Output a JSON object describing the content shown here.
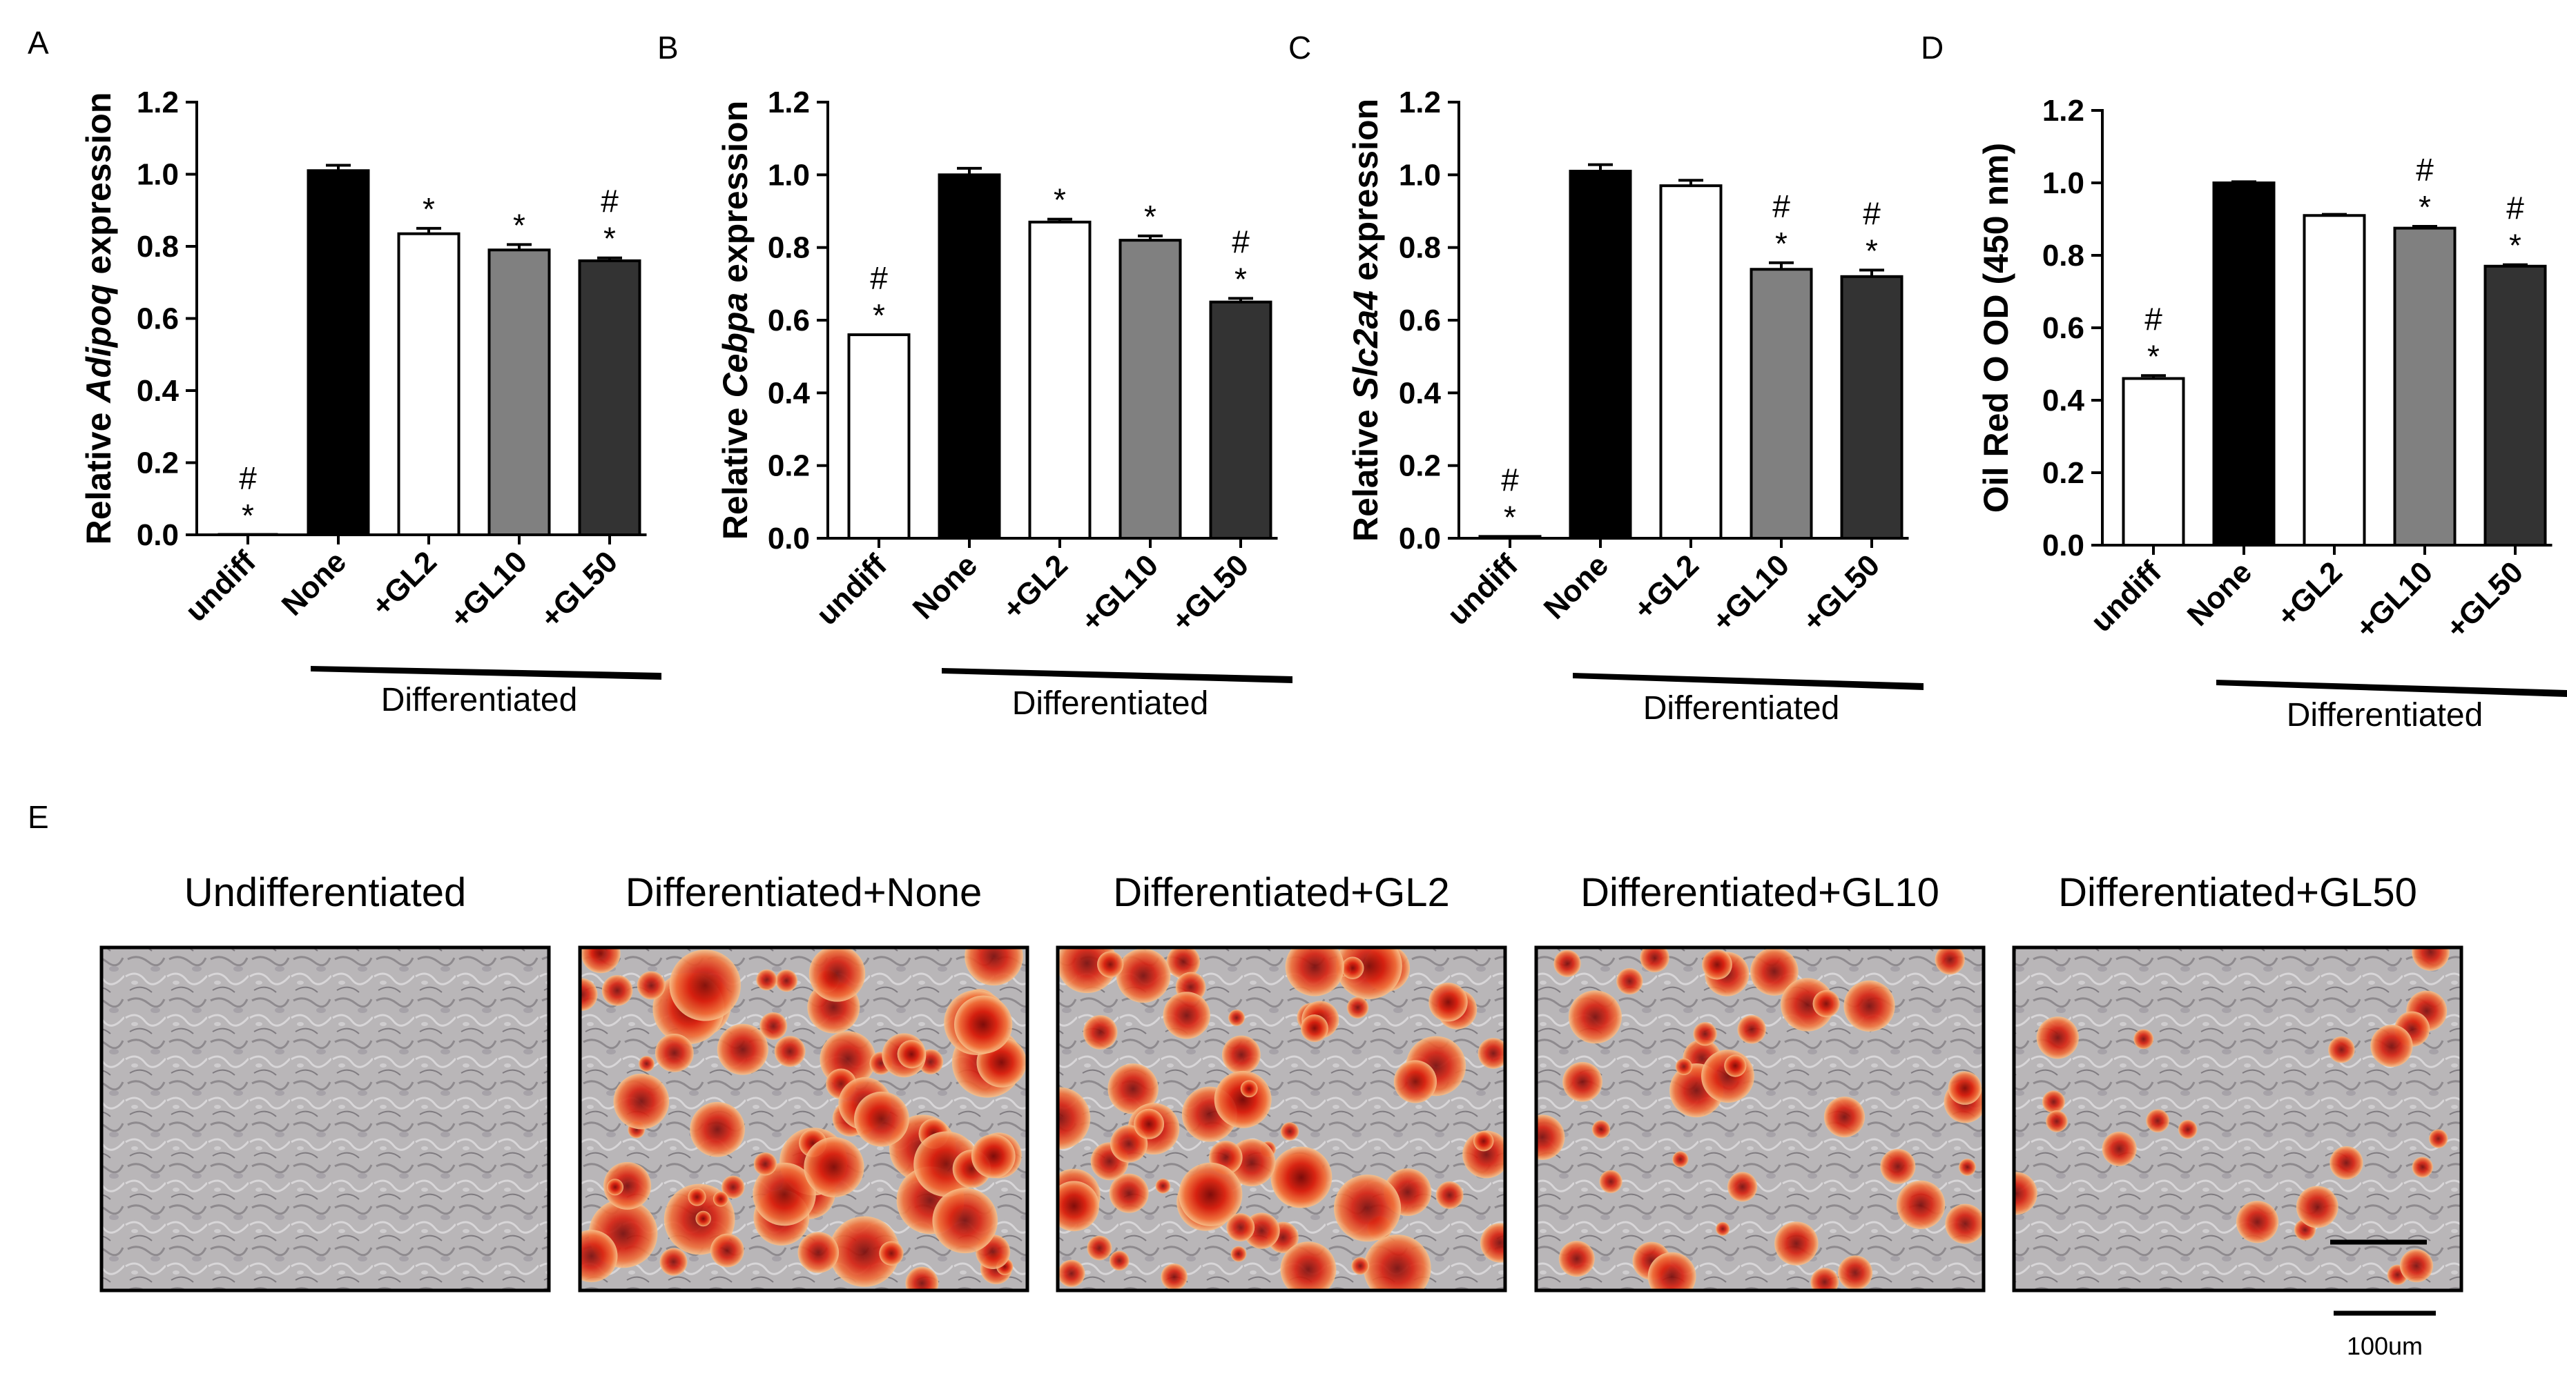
{
  "chart_data": [
    {
      "type": "bar",
      "panel": "A",
      "ylabel_prefix": "Relative ",
      "ylabel_gene": "Adipoq",
      "ylabel_suffix": " expression",
      "categories": [
        "undiff",
        "None",
        "+GL2",
        "+GL10",
        "+GL50"
      ],
      "values": [
        0.0,
        1.01,
        0.835,
        0.79,
        0.76
      ],
      "errors": [
        0.0,
        0.015,
        0.015,
        0.015,
        0.008
      ],
      "colors": [
        "#ffffff",
        "#000000",
        "#ffffff",
        "#808080",
        "#333333"
      ],
      "significance": [
        "#\n*",
        "",
        "*",
        "*",
        "#\n*"
      ],
      "ylim": [
        0,
        1.2
      ],
      "yticks": [
        "0.0",
        "0.2",
        "0.4",
        "0.6",
        "0.8",
        "1.0",
        "1.2"
      ],
      "group_label": "Differentiated"
    },
    {
      "type": "bar",
      "panel": "B",
      "ylabel_prefix": "Relative ",
      "ylabel_gene": "Cebpa",
      "ylabel_suffix": " expression",
      "categories": [
        "undiff",
        "None",
        "+GL2",
        "+GL10",
        "+GL50"
      ],
      "values": [
        0.56,
        1.0,
        0.87,
        0.82,
        0.65
      ],
      "errors": [
        0.0,
        0.018,
        0.008,
        0.012,
        0.01
      ],
      "colors": [
        "#ffffff",
        "#000000",
        "#ffffff",
        "#808080",
        "#333333"
      ],
      "significance": [
        "#\n*",
        "",
        "*",
        "*",
        "#\n*"
      ],
      "ylim": [
        0,
        1.2
      ],
      "yticks": [
        "0.0",
        "0.2",
        "0.4",
        "0.6",
        "0.8",
        "1.0",
        "1.2"
      ],
      "group_label": "Differentiated"
    },
    {
      "type": "bar",
      "panel": "C",
      "ylabel_prefix": "Relative ",
      "ylabel_gene": "Slc2a4",
      "ylabel_suffix": " expression",
      "categories": [
        "undiff",
        "None",
        "+GL2",
        "+GL10",
        "+GL50"
      ],
      "values": [
        0.005,
        1.01,
        0.97,
        0.74,
        0.72
      ],
      "errors": [
        0.0,
        0.018,
        0.015,
        0.018,
        0.018
      ],
      "colors": [
        "#ffffff",
        "#000000",
        "#ffffff",
        "#808080",
        "#333333"
      ],
      "significance": [
        "#\n*",
        "",
        "",
        "#\n*",
        "#\n*"
      ],
      "ylim": [
        0,
        1.2
      ],
      "yticks": [
        "0.0",
        "0.2",
        "0.4",
        "0.6",
        "0.8",
        "1.0",
        "1.2"
      ],
      "group_label": "Differentiated"
    },
    {
      "type": "bar",
      "panel": "D",
      "ylabel_prefix": "Oil Red O OD (450 nm)",
      "ylabel_gene": "",
      "ylabel_suffix": "",
      "categories": [
        "undiff",
        "None",
        "+GL2",
        "+GL10",
        "+GL50"
      ],
      "values": [
        0.46,
        1.0,
        0.91,
        0.875,
        0.77
      ],
      "errors": [
        0.008,
        0.003,
        0.003,
        0.005,
        0.004
      ],
      "colors": [
        "#ffffff",
        "#000000",
        "#ffffff",
        "#808080",
        "#333333"
      ],
      "significance": [
        "#\n*",
        "",
        "",
        "#\n*",
        "#\n*"
      ],
      "ylim": [
        0,
        1.2
      ],
      "yticks": [
        "0.0",
        "0.2",
        "0.4",
        "0.6",
        "0.8",
        "1.0",
        "1.2"
      ],
      "group_label": "Differentiated"
    }
  ],
  "panel_e": {
    "letter": "E",
    "images": [
      {
        "caption": "Undifferentiated",
        "stain": 0.0
      },
      {
        "caption": "Differentiated+None",
        "stain": 1.0
      },
      {
        "caption": "Differentiated+GL2",
        "stain": 0.9
      },
      {
        "caption": "Differentiated+GL10",
        "stain": 0.55
      },
      {
        "caption": "Differentiated+GL50",
        "stain": 0.3
      }
    ],
    "scale_bar_label": "100um"
  }
}
